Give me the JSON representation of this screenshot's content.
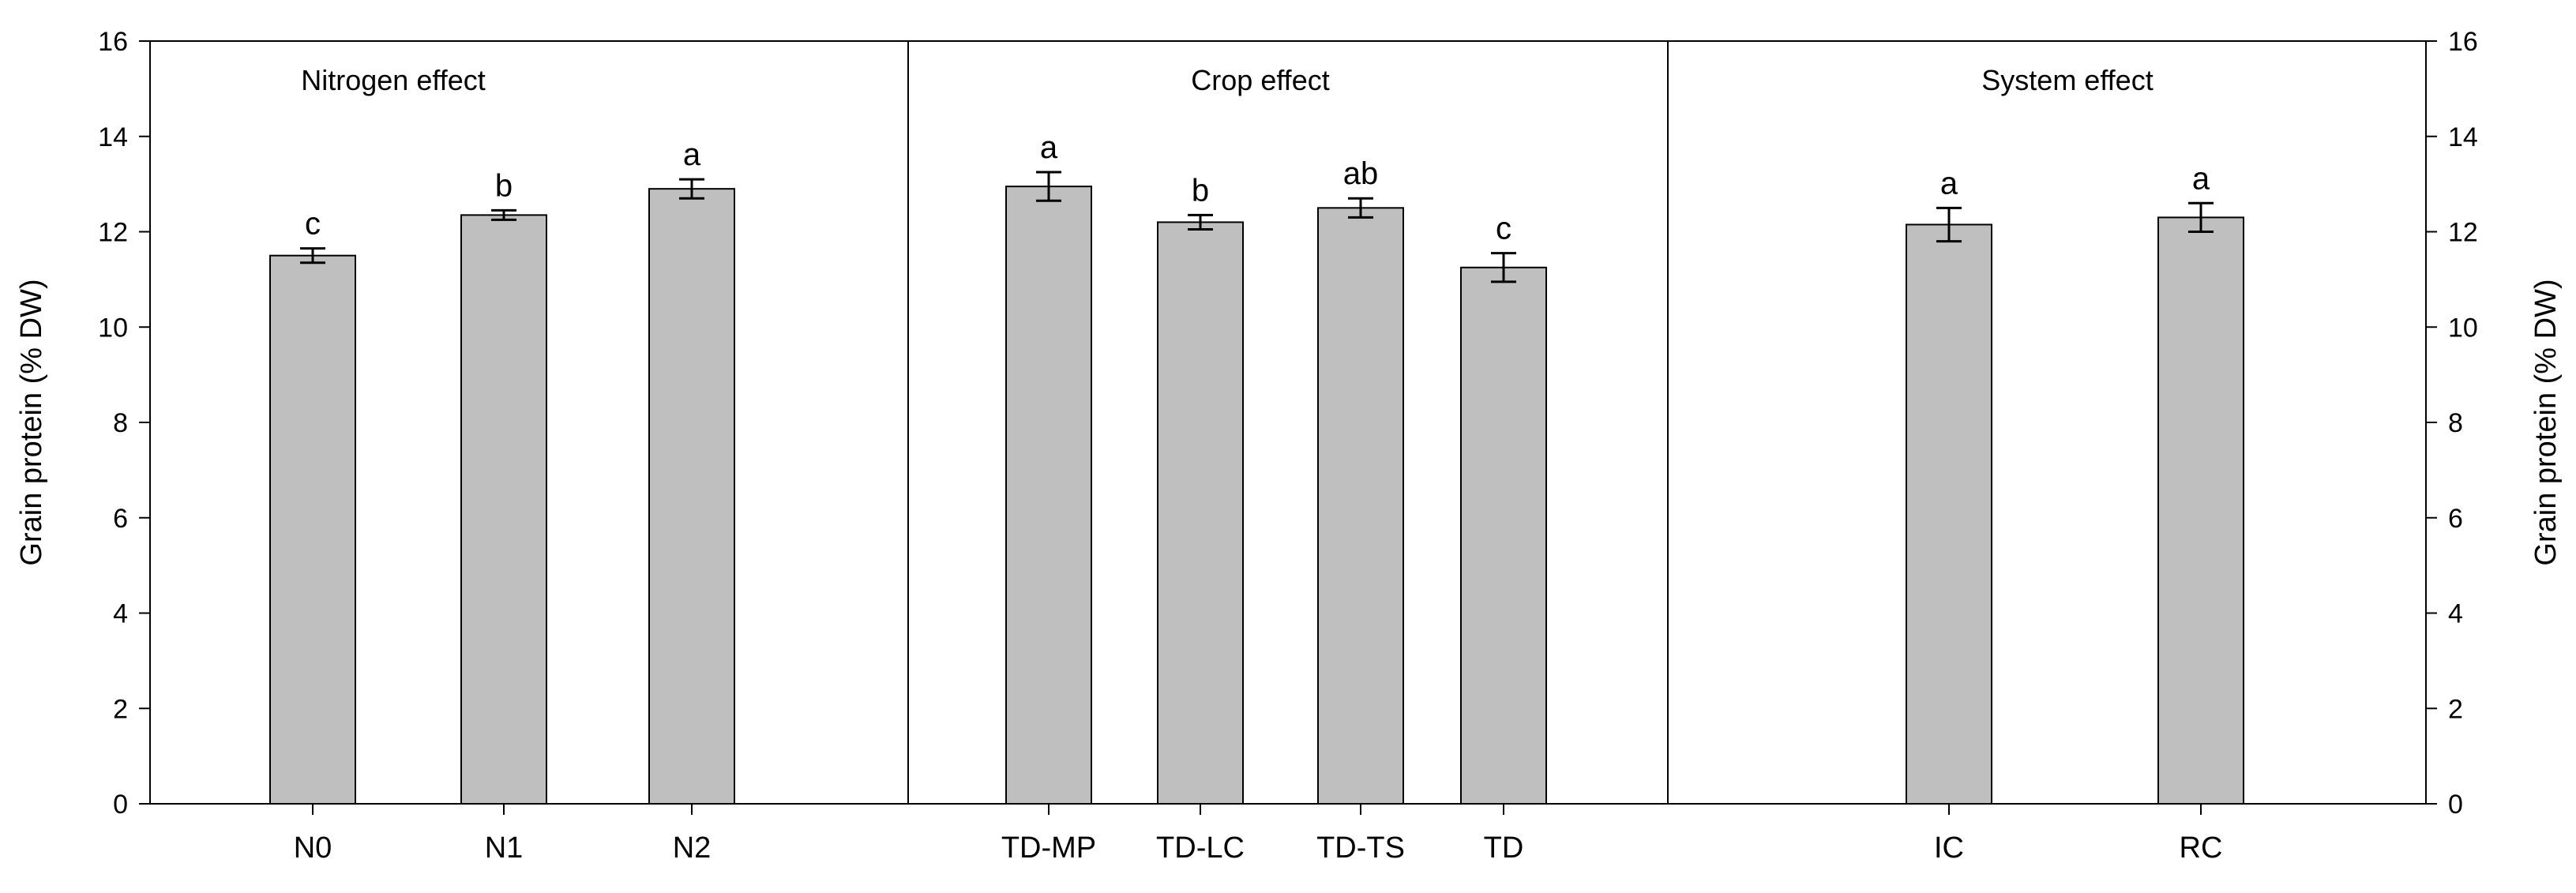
{
  "chart_data": {
    "type": "bar",
    "ylabel_left": "Grain protein (% DW)",
    "ylabel_right": "Grain protein (% DW)",
    "ylim": [
      0,
      16
    ],
    "yticks": [
      0,
      2,
      4,
      6,
      8,
      10,
      12,
      14,
      16
    ],
    "bar_color": "#bfbfbf",
    "panels": [
      {
        "title": "Nitrogen effect",
        "categories": [
          "N0",
          "N1",
          "N2"
        ],
        "values": [
          11.5,
          12.35,
          12.9
        ],
        "errors": [
          0.15,
          0.1,
          0.2
        ],
        "letters": [
          "c",
          "b",
          "a"
        ]
      },
      {
        "title": "Crop effect",
        "categories": [
          "TD-MP",
          "TD-LC",
          "TD-TS",
          "TD"
        ],
        "values": [
          12.95,
          12.2,
          12.5,
          11.25
        ],
        "errors": [
          0.3,
          0.15,
          0.2,
          0.3
        ],
        "letters": [
          "a",
          "b",
          "ab",
          "c"
        ]
      },
      {
        "title": "System effect",
        "categories": [
          "IC",
          "RC"
        ],
        "values": [
          12.15,
          12.3
        ],
        "errors": [
          0.35,
          0.3
        ],
        "letters": [
          "a",
          "a"
        ]
      }
    ]
  }
}
